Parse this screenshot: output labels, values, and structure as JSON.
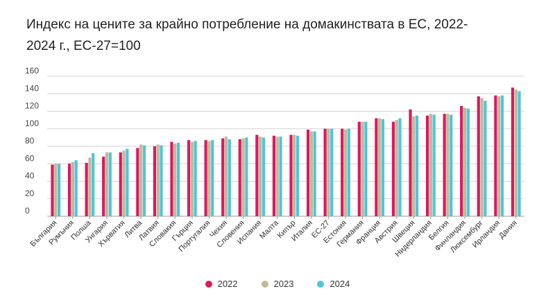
{
  "chart_data": {
    "type": "bar",
    "title": "Индекс на цените за крайно потребление на домакинствата в ЕС, 2022-2024 г., ЕС-27=100",
    "xlabel": "",
    "ylabel": "",
    "ylim": [
      0,
      160
    ],
    "yticks": [
      0,
      20,
      40,
      60,
      80,
      100,
      120,
      140,
      160
    ],
    "grid": true,
    "legend_position": "bottom",
    "categories": [
      "България",
      "Румъния",
      "Полша",
      "Унгария",
      "Хърватия",
      "Литва",
      "Латвия",
      "Словакия",
      "Гърция",
      "Португалия",
      "Чехия",
      "Словения",
      "Испания",
      "Малта",
      "Кипър",
      "Италия",
      "ЕС-27",
      "Естония",
      "Германия",
      "Франция",
      "Австрия",
      "Швеция",
      "Нидерландия",
      "Белгия",
      "Финландия",
      "Люксембург",
      "Ирландия",
      "Дания"
    ],
    "series": [
      {
        "name": "2022",
        "color": "#d81b5f",
        "values": [
          59,
          60,
          61,
          68,
          73,
          78,
          80,
          85,
          87,
          87,
          89,
          88,
          93,
          92,
          93,
          99,
          100,
          100,
          108,
          112,
          108,
          122,
          115,
          117,
          126,
          137,
          138,
          147
        ]
      },
      {
        "name": "2023",
        "color": "#c9b59a",
        "values": [
          60,
          62,
          67,
          73,
          75,
          82,
          82,
          83,
          85,
          86,
          91,
          89,
          91,
          91,
          93,
          97,
          100,
          99,
          108,
          112,
          110,
          114,
          117,
          117,
          124,
          135,
          137,
          145
        ]
      },
      {
        "name": "2024",
        "color": "#4ec6d8",
        "values": [
          60,
          64,
          72,
          73,
          77,
          81,
          81,
          84,
          86,
          87,
          88,
          90,
          90,
          91,
          92,
          97,
          100,
          100,
          108,
          111,
          112,
          115,
          116,
          116,
          123,
          132,
          138,
          143
        ]
      }
    ]
  }
}
